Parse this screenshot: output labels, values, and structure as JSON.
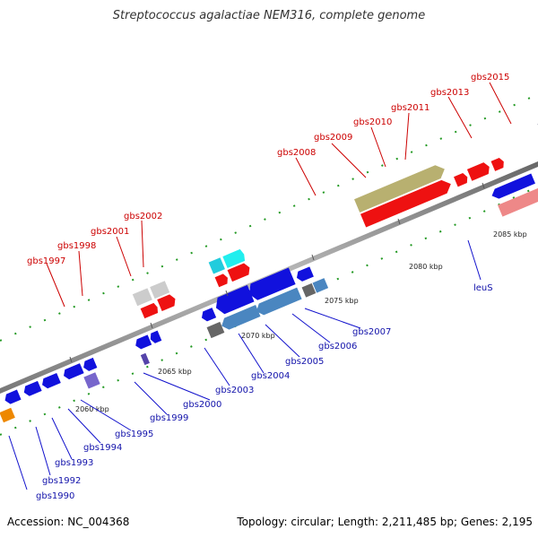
{
  "title": "Streptococcus agalactiae NEM316, complete genome",
  "footer": {
    "accession": "Accession: NC_004368",
    "summary": "Topology: circular; Length: 2,211,485 bp; Genes: 2,195"
  },
  "scale_labels": [
    "2060 kbp",
    "2065 kbp",
    "2070 kbp",
    "2075 kbp",
    "2080 kbp",
    "2085 kbp"
  ],
  "genes_top": [
    "gbs1997",
    "gbs1998",
    "gbs2001",
    "gbs2002",
    "gbs2008",
    "gbs2009",
    "gbs2010",
    "gbs2011",
    "gbs2013",
    "gbs2015"
  ],
  "genes_bottom": [
    "gbs1990",
    "gbs1992",
    "gbs1993",
    "gbs1994",
    "gbs1995",
    "gbs1999",
    "gbs2000",
    "gbs2003",
    "gbs2004",
    "gbs2005",
    "gbs2006",
    "gbs2007",
    "leuS"
  ],
  "colors": {
    "forward_cds": "#ee1111",
    "reverse_cds": "#1111dd",
    "trna": "#22ccdd",
    "steelblue": "#4a86c0",
    "olive": "#b8b070",
    "pink": "#ee8888",
    "gray": "#bbbbbb",
    "darkgray": "#666666",
    "green": "#779922",
    "purple": "#7766cc",
    "orange": "#ee8800",
    "backbone": "#888888"
  }
}
